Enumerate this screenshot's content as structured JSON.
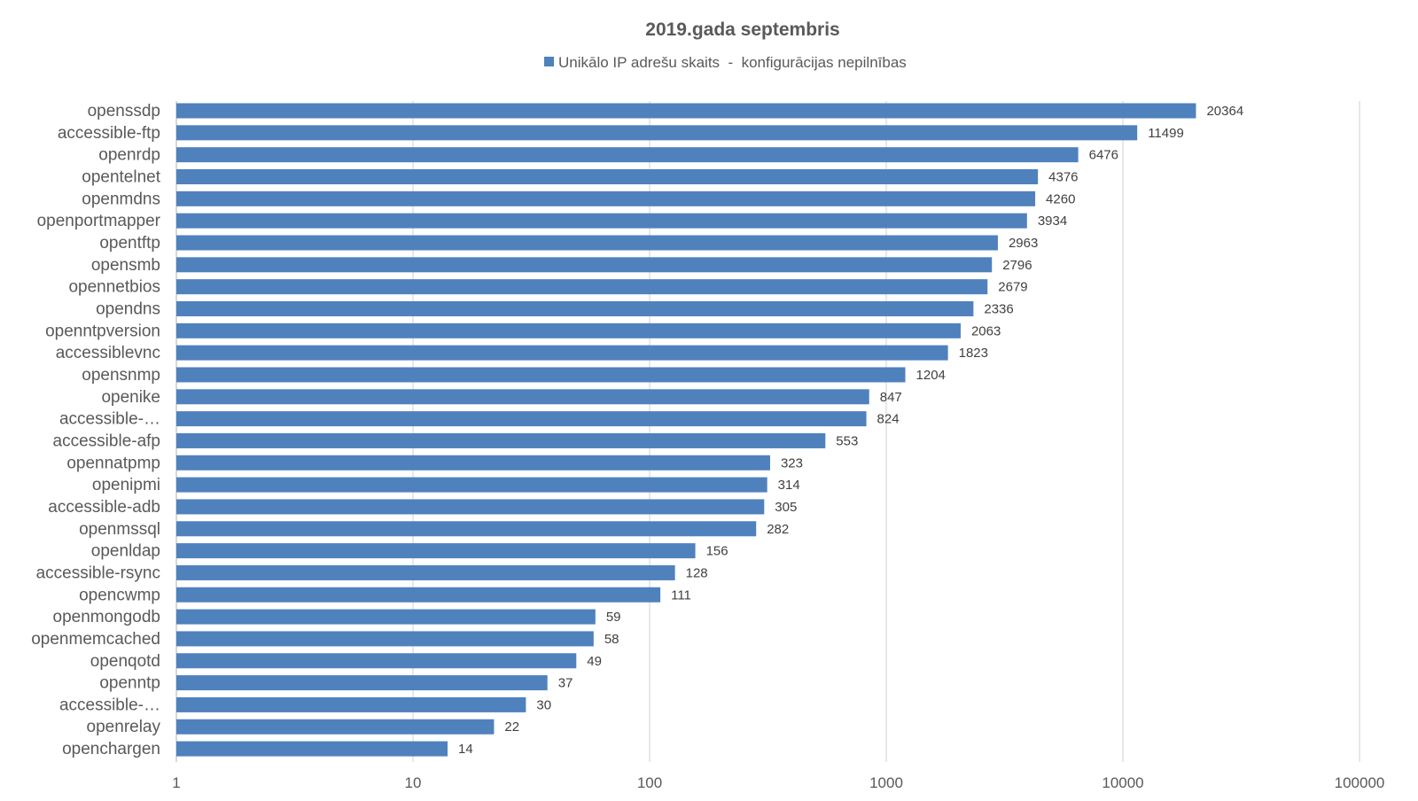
{
  "chart_data": {
    "type": "bar",
    "orientation": "horizontal",
    "title": "2019.gada septembris",
    "x_scale": "log",
    "xlim": [
      1,
      100000
    ],
    "x_ticks": [
      "1",
      "10",
      "100",
      "1000",
      "10000",
      "100000"
    ],
    "grid": "vertical",
    "legend_position": "top",
    "categories": [
      "openssdp",
      "accessible-ftp",
      "openrdp",
      "opentelnet",
      "openmdns",
      "openportmapper",
      "opentftp",
      "opensmb",
      "opennetbios",
      "opendns",
      "openntpversion",
      "accessiblevnc",
      "opensnmp",
      "openike",
      "accessible-…",
      "accessible-afp",
      "opennatpmp",
      "openipmi",
      "accessible-adb",
      "openmssql",
      "openldap",
      "accessible-rsync",
      "opencwmp",
      "openmongodb",
      "openmemcached",
      "openqotd",
      "openntp",
      "accessible-…",
      "openrelay",
      "openchargen"
    ],
    "series": [
      {
        "name": "Unikālo IP adrešu skaits  -  konfigurācijas nepilnības",
        "color": "#4f81bd",
        "values": [
          20364,
          11499,
          6476,
          4376,
          4260,
          3934,
          2963,
          2796,
          2679,
          2336,
          2063,
          1823,
          1204,
          847,
          824,
          553,
          323,
          314,
          305,
          282,
          156,
          128,
          111,
          59,
          58,
          49,
          37,
          30,
          22,
          14
        ]
      }
    ],
    "colors": {
      "bar": "#4f81bd",
      "grid": "#d9d9d9",
      "title_text": "#595959",
      "axis_text": "#595959",
      "label_text": "#404040"
    }
  }
}
